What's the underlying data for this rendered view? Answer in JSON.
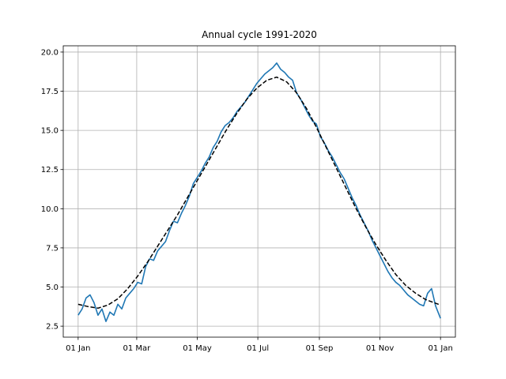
{
  "chart_data": {
    "type": "line",
    "title": "Annual cycle 1991-2020",
    "xlabel": "",
    "ylabel": "",
    "x_unit": "day of year",
    "xlim_days": [
      -15,
      380
    ],
    "ylim": [
      1.8,
      20.4
    ],
    "grid": true,
    "xticks": [
      {
        "day": 0,
        "label": "01 Jan"
      },
      {
        "day": 59,
        "label": "01 Mar"
      },
      {
        "day": 120,
        "label": "01 May"
      },
      {
        "day": 181,
        "label": "01 Jul"
      },
      {
        "day": 243,
        "label": "01 Sep"
      },
      {
        "day": 304,
        "label": "01 Nov"
      },
      {
        "day": 365,
        "label": "01 Jan"
      }
    ],
    "yticks": [
      2.5,
      5.0,
      7.5,
      10.0,
      12.5,
      15.0,
      17.5,
      20.0
    ],
    "series": [
      {
        "color": "#1f77b4",
        "style": "solid",
        "x": [
          0,
          4,
          8,
          12,
          16,
          20,
          24,
          28,
          32,
          36,
          40,
          44,
          48,
          52,
          56,
          60,
          64,
          68,
          72,
          76,
          80,
          84,
          88,
          92,
          96,
          100,
          104,
          108,
          112,
          116,
          120,
          124,
          128,
          132,
          136,
          140,
          144,
          148,
          152,
          156,
          160,
          164,
          168,
          172,
          176,
          180,
          184,
          188,
          192,
          196,
          200,
          204,
          208,
          212,
          216,
          220,
          224,
          228,
          232,
          236,
          240,
          244,
          248,
          252,
          256,
          260,
          264,
          268,
          272,
          276,
          280,
          284,
          288,
          292,
          296,
          300,
          304,
          308,
          312,
          316,
          320,
          324,
          328,
          332,
          336,
          340,
          344,
          348,
          352,
          356,
          360,
          365
        ],
        "y": [
          3.2,
          3.6,
          4.3,
          4.5,
          4.0,
          3.2,
          3.6,
          2.8,
          3.4,
          3.2,
          3.9,
          3.6,
          4.3,
          4.6,
          4.9,
          5.3,
          5.2,
          6.3,
          6.8,
          6.7,
          7.3,
          7.6,
          7.9,
          8.6,
          9.2,
          9.1,
          9.7,
          10.2,
          10.8,
          11.6,
          12.0,
          12.4,
          12.9,
          13.3,
          13.9,
          14.3,
          14.9,
          15.3,
          15.5,
          15.8,
          16.2,
          16.5,
          16.8,
          17.2,
          17.6,
          18.0,
          18.3,
          18.6,
          18.8,
          19.0,
          19.3,
          18.9,
          18.7,
          18.4,
          18.2,
          17.4,
          17.0,
          16.5,
          16.0,
          15.6,
          15.4,
          14.6,
          14.2,
          13.7,
          13.3,
          12.8,
          12.3,
          11.9,
          11.3,
          10.7,
          10.2,
          9.6,
          9.1,
          8.6,
          8.0,
          7.5,
          7.0,
          6.5,
          6.0,
          5.6,
          5.3,
          5.1,
          4.8,
          4.5,
          4.3,
          4.1,
          3.9,
          3.8,
          4.6,
          4.9,
          3.8,
          3.0
        ]
      },
      {
        "color": "#000000",
        "style": "dashed",
        "x": [
          0,
          10,
          20,
          30,
          40,
          50,
          60,
          70,
          80,
          90,
          100,
          110,
          120,
          130,
          140,
          150,
          160,
          170,
          180,
          190,
          200,
          210,
          220,
          230,
          240,
          250,
          260,
          270,
          280,
          290,
          300,
          310,
          320,
          330,
          340,
          350,
          365
        ],
        "y": [
          3.9,
          3.75,
          3.65,
          3.85,
          4.25,
          4.9,
          5.7,
          6.6,
          7.6,
          8.6,
          9.6,
          10.7,
          11.8,
          12.9,
          14.0,
          15.1,
          16.1,
          17.0,
          17.7,
          18.2,
          18.4,
          18.1,
          17.4,
          16.4,
          15.2,
          13.9,
          12.6,
          11.3,
          10.0,
          8.8,
          7.7,
          6.7,
          5.8,
          5.1,
          4.6,
          4.2,
          3.85
        ]
      }
    ]
  }
}
